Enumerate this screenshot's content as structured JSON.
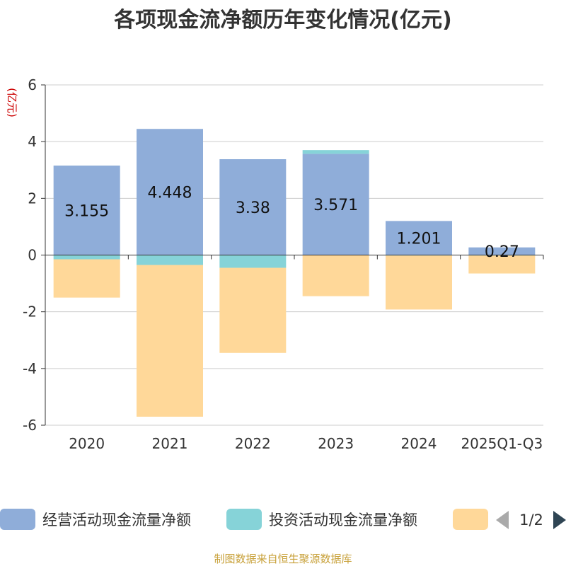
{
  "chart_data": {
    "type": "bar",
    "stacked": true,
    "title": "各项现金流净额历年变化情况(亿元)",
    "ylabel": "(亿元)",
    "xlabel": "",
    "categories": [
      "2020",
      "2021",
      "2022",
      "2023",
      "2024",
      "2025Q1-Q3"
    ],
    "ylim": [
      -6,
      6
    ],
    "yticks": [
      -6,
      -4,
      -2,
      0,
      2,
      4,
      6
    ],
    "grid": true,
    "series": [
      {
        "name": "经营活动现金流量净额",
        "color": "#8fadd9",
        "values": [
          3.155,
          4.448,
          3.38,
          3.571,
          1.201,
          0.27
        ],
        "labels": [
          "3.155",
          "4.448",
          "3.38",
          "3.571",
          "1.201",
          "0.27"
        ]
      },
      {
        "name": "投资活动现金流量净额",
        "color": "#86d3d8",
        "values": [
          -0.15,
          -0.35,
          -0.45,
          0.13,
          -0.02,
          -0.02
        ]
      },
      {
        "name": "",
        "color": "#ffd899",
        "values": [
          -1.35,
          -5.35,
          -3.0,
          -1.45,
          -1.9,
          -0.63
        ]
      }
    ],
    "legend": {
      "placement": "bottom",
      "page": "1/2"
    },
    "source": "制图数据来自恒生聚源数据库"
  }
}
